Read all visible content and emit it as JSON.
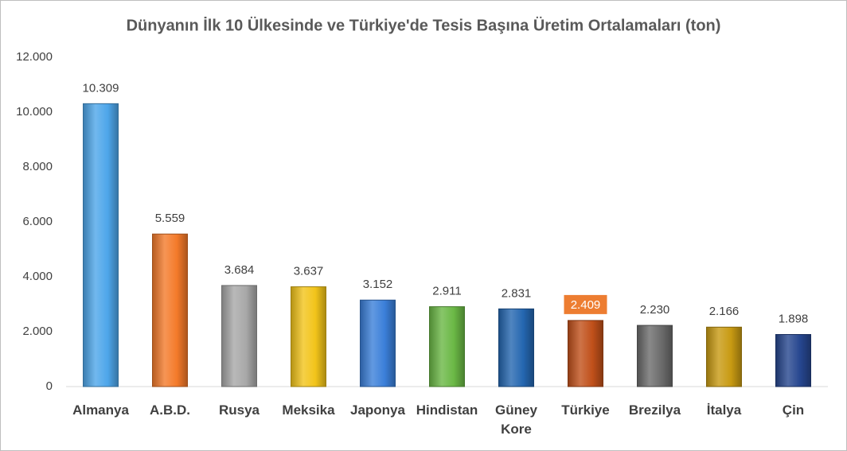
{
  "chart_data": {
    "type": "bar",
    "title": "Dünyanın İlk 10 Ülkesinde ve Türkiye'de Tesis Başına Üretim Ortalamaları (ton)",
    "categories": [
      "Almanya",
      "A.B.D.",
      "Rusya",
      "Meksika",
      "Japonya",
      "Hindistan",
      "Güney Kore",
      "Türkiye",
      "Brezilya",
      "İtalya",
      "Çin"
    ],
    "values": [
      10309,
      5559,
      3684,
      3637,
      3152,
      2911,
      2831,
      2409,
      2230,
      2166,
      1898
    ],
    "value_labels": [
      "10.309",
      "5.559",
      "3.684",
      "3.637",
      "3.152",
      "2.911",
      "2.831",
      "2.409",
      "2.230",
      "2.166",
      "1.898"
    ],
    "colors": [
      "#4ea6ea",
      "#f47a2a",
      "#a8a8a8",
      "#f2c41a",
      "#3b7fd9",
      "#6ab845",
      "#2466b0",
      "#c0501a",
      "#6b6b6b",
      "#c89a12",
      "#26468f"
    ],
    "value_label_backgrounds": [
      null,
      null,
      null,
      null,
      null,
      null,
      null,
      "#ed7d31",
      null,
      null,
      null
    ],
    "ylim": [
      0,
      12000
    ],
    "yticks": [
      {
        "value": 0,
        "label": "0"
      },
      {
        "value": 2000,
        "label": "2.000"
      },
      {
        "value": 4000,
        "label": "4.000"
      },
      {
        "value": 6000,
        "label": "6.000"
      },
      {
        "value": 8000,
        "label": "8.000"
      },
      {
        "value": 10000,
        "label": "10.000"
      },
      {
        "value": 12000,
        "label": "12.000"
      }
    ],
    "grid": false
  }
}
